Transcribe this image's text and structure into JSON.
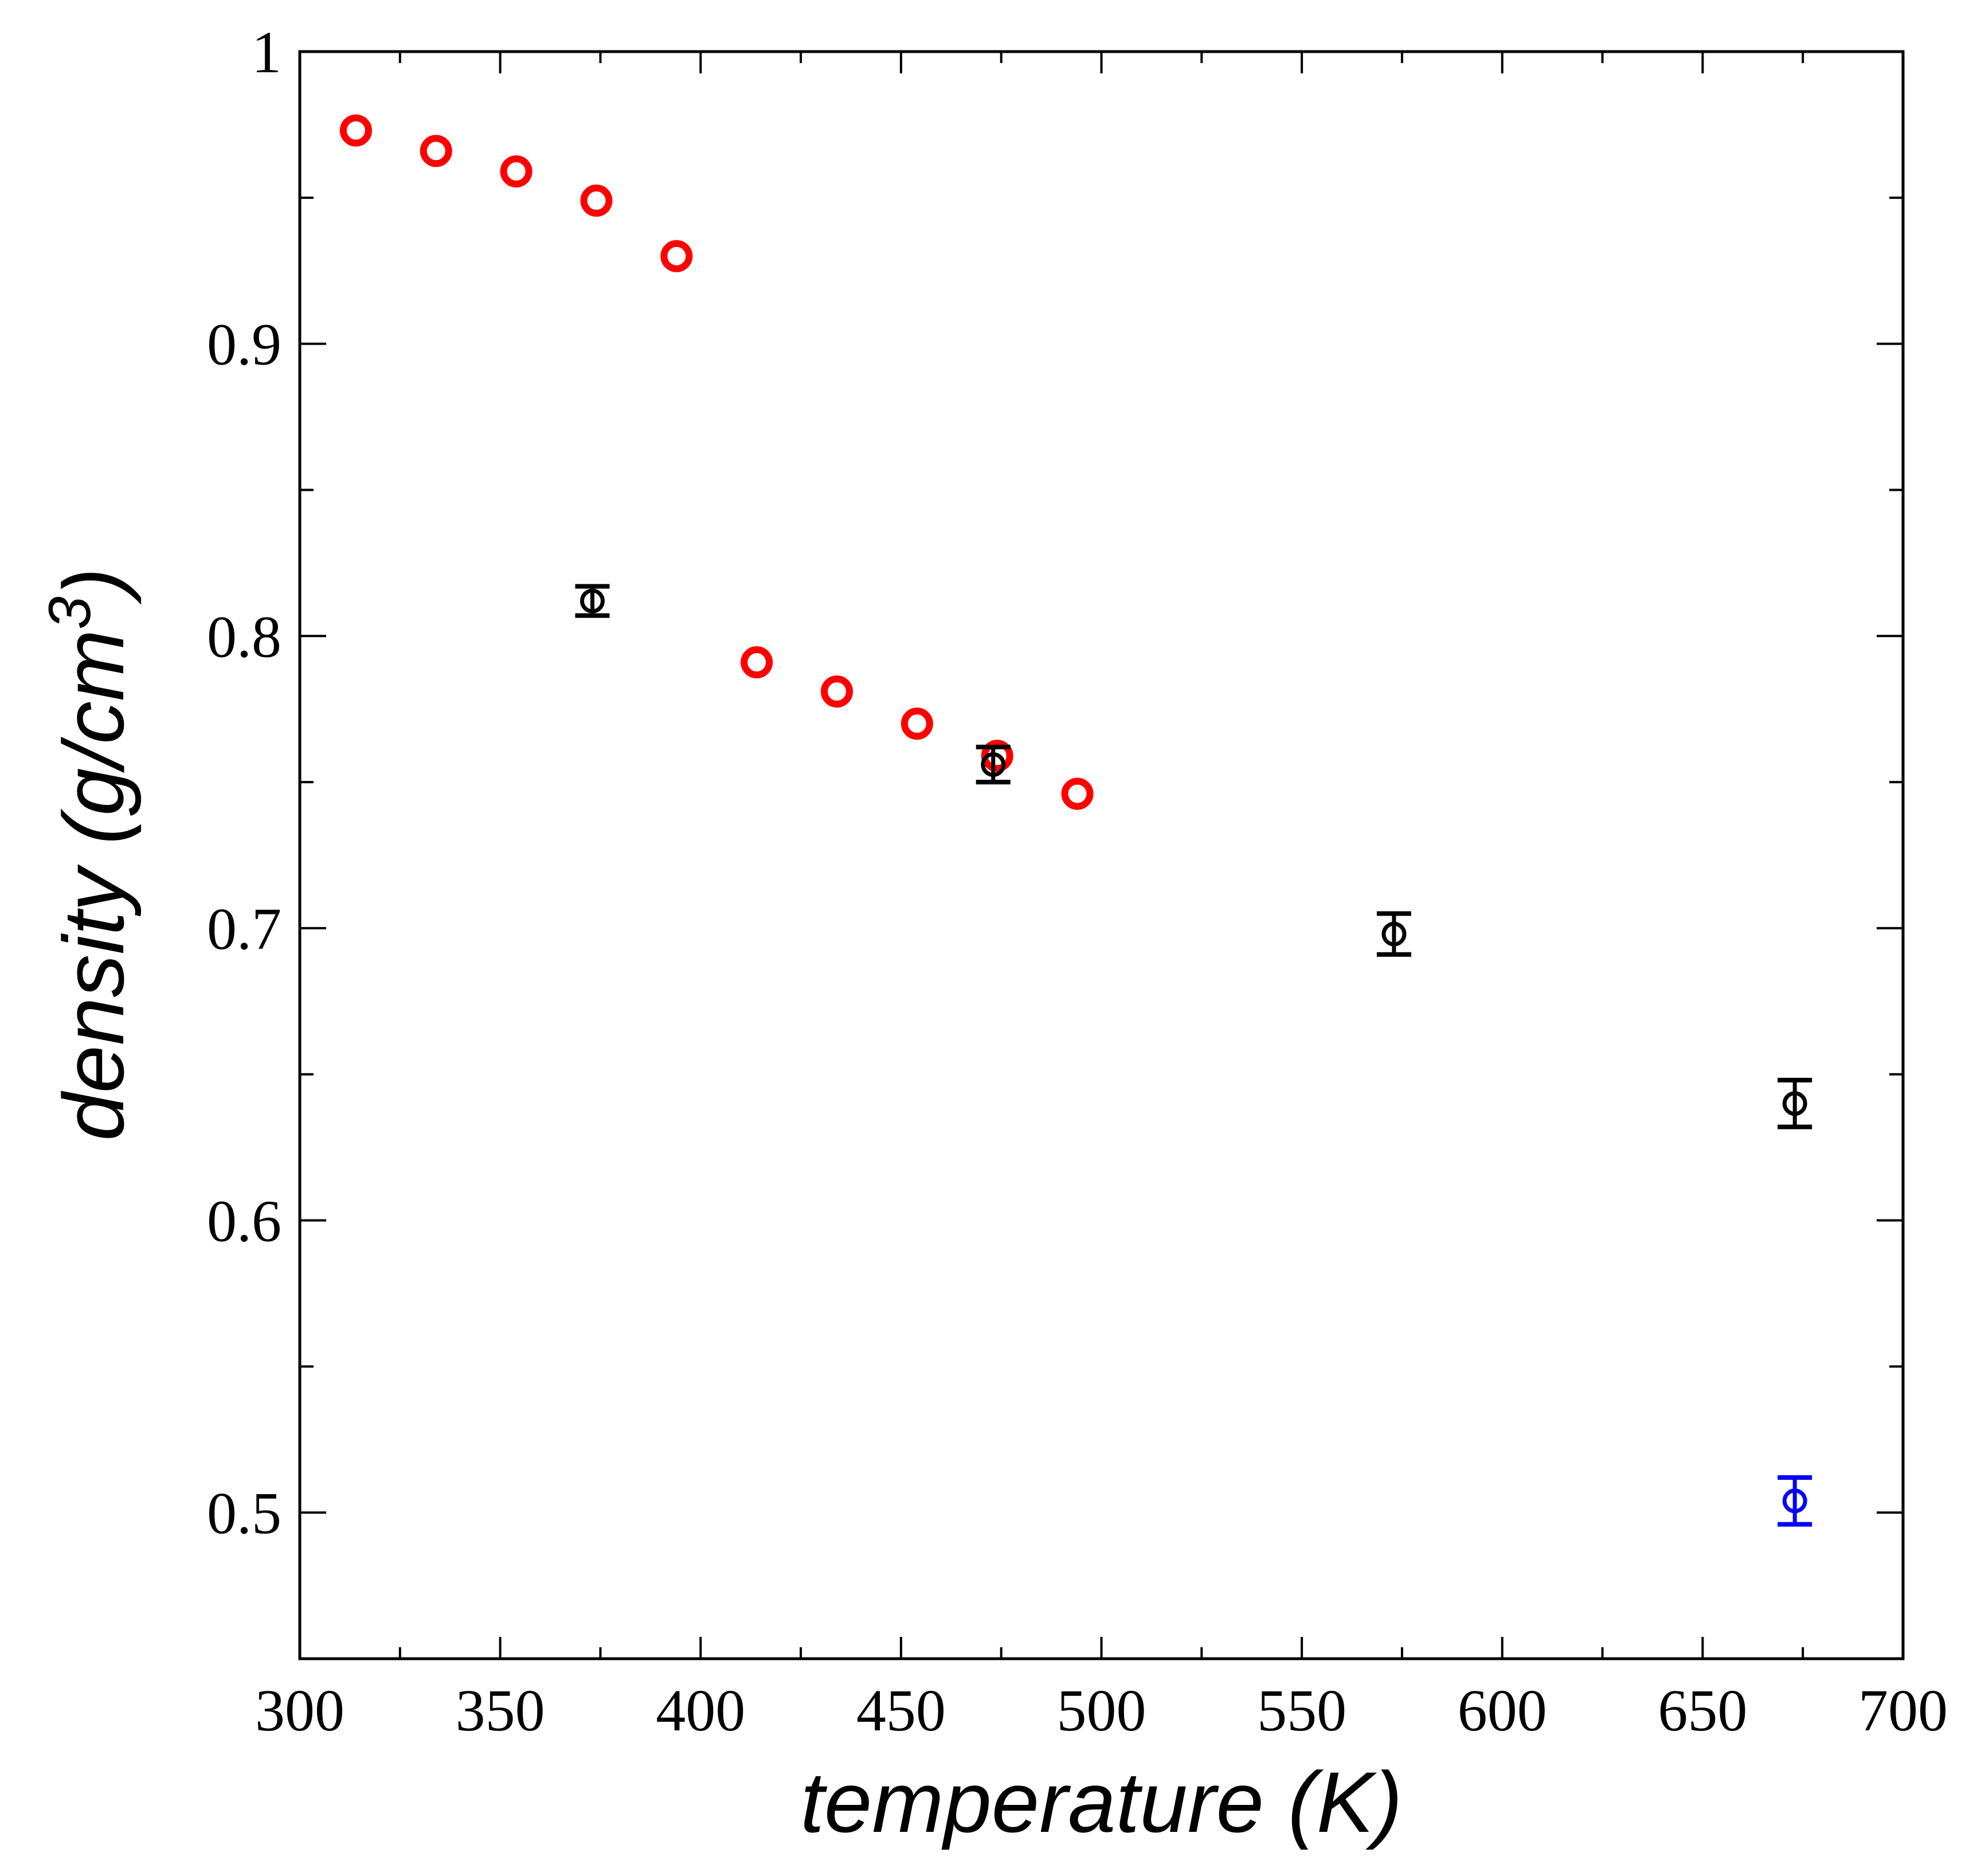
{
  "chart_data": {
    "type": "scatter",
    "title": "",
    "xlabel": "temperature (K)",
    "ylabel_main": "density (g/cm",
    "ylabel_sup": "3",
    "ylabel_close": ")",
    "xlim": [
      300,
      700
    ],
    "ylim": [
      0.45,
      1.0
    ],
    "x_ticks": [
      300,
      350,
      400,
      450,
      500,
      550,
      600,
      650,
      700
    ],
    "x_tick_labels": [
      "300",
      "350",
      "400",
      "450",
      "500",
      "550",
      "600",
      "650",
      "700"
    ],
    "x_minor_step": 25,
    "y_ticks": [
      0.5,
      0.6,
      0.7,
      0.8,
      0.9,
      1.0
    ],
    "y_tick_labels": [
      "0.5",
      "0.6",
      "0.7",
      "0.8",
      "0.9",
      "1"
    ],
    "y_minor_step": 0.05,
    "grid": false,
    "series": [
      {
        "name": "red-circles",
        "color": "#ff0000",
        "marker": "open-circle",
        "x": [
          314,
          334,
          354,
          374,
          394,
          414,
          434,
          454,
          474,
          494
        ],
        "y": [
          0.973,
          0.966,
          0.959,
          0.949,
          0.93,
          0.791,
          0.781,
          0.77,
          0.759,
          0.746
        ]
      },
      {
        "name": "black-errorbars",
        "color": "#000000",
        "marker": "open-circle-errorbar",
        "x": [
          373,
          473,
          573,
          673
        ],
        "y": [
          0.812,
          0.756,
          0.698,
          0.64
        ],
        "yerr": [
          0.005,
          0.006,
          0.007,
          0.008
        ]
      },
      {
        "name": "blue-errorbar",
        "color": "#0000ff",
        "marker": "open-circle-errorbar",
        "x": [
          673
        ],
        "y": [
          0.504
        ],
        "yerr": [
          0.008
        ]
      }
    ]
  }
}
